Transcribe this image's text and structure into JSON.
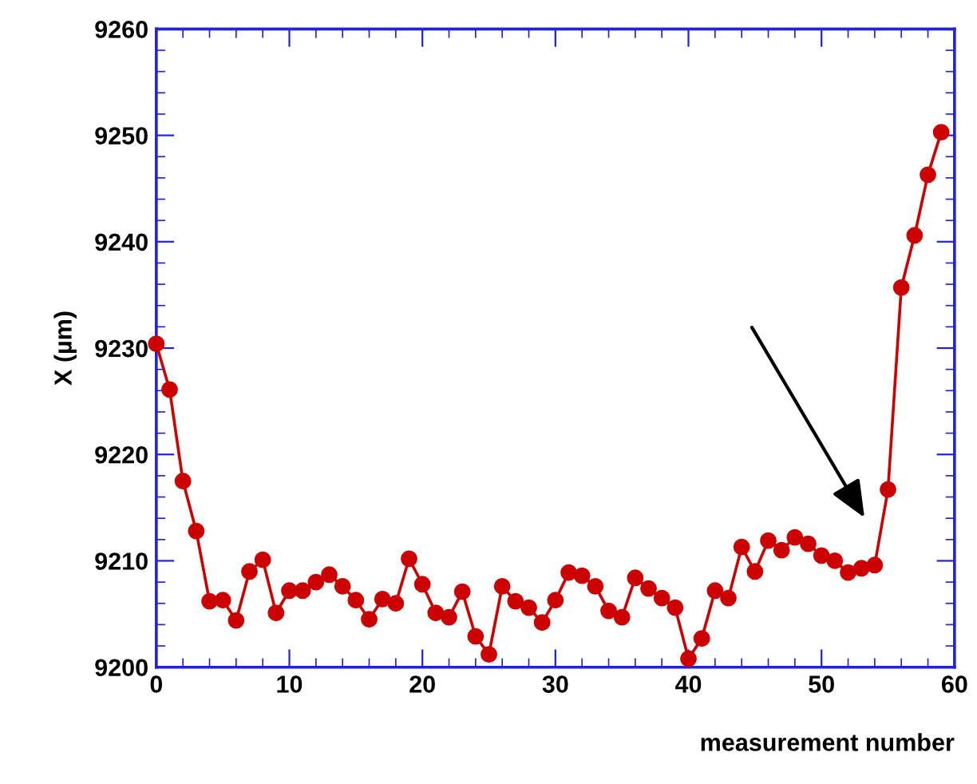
{
  "chart_data": {
    "type": "line",
    "xlabel": "measurement number",
    "ylabel": "X (µm)",
    "x": [
      0,
      1,
      2,
      3,
      4,
      5,
      6,
      7,
      8,
      9,
      10,
      11,
      12,
      13,
      14,
      15,
      16,
      17,
      18,
      19,
      20,
      21,
      22,
      23,
      24,
      25,
      26,
      27,
      28,
      29,
      30,
      31,
      32,
      33,
      34,
      35,
      36,
      37,
      38,
      39,
      40,
      41,
      42,
      43,
      44,
      45,
      46,
      47,
      48,
      49,
      50,
      51,
      52,
      53,
      54,
      55,
      56,
      57,
      58,
      59
    ],
    "series": [
      {
        "color": "#cc0000",
        "values": [
          9230.4,
          9226.1,
          9217.5,
          9212.8,
          9206.2,
          9206.3,
          9204.4,
          9209.0,
          9210.1,
          9205.1,
          9207.2,
          9207.2,
          9208.0,
          9208.7,
          9207.6,
          9206.3,
          9204.5,
          9206.4,
          9206.0,
          9210.2,
          9207.8,
          9205.1,
          9204.7,
          9207.1,
          9202.9,
          9201.2,
          9207.6,
          9206.2,
          9205.6,
          9204.2,
          9206.3,
          9208.9,
          9208.6,
          9207.6,
          9205.3,
          9204.7,
          9208.4,
          9207.4,
          9206.5,
          9205.6,
          9200.8,
          9202.7,
          9207.2,
          9206.5,
          9211.3,
          9209.0,
          9211.9,
          9211.0,
          9212.2,
          9211.6,
          9210.5,
          9210.0,
          9208.9,
          9209.3,
          9209.6,
          9216.7,
          9235.7,
          9240.6,
          9246.3,
          9250.3
        ]
      }
    ],
    "xlim": [
      0,
      60
    ],
    "xticks": [
      0,
      10,
      20,
      30,
      40,
      50,
      60
    ],
    "ylim": [
      9200,
      9260
    ],
    "yticks": [
      9200,
      9210,
      9220,
      9230,
      9240,
      9250,
      9260
    ],
    "grid": false,
    "marker": "circle",
    "line_style": "solid"
  }
}
